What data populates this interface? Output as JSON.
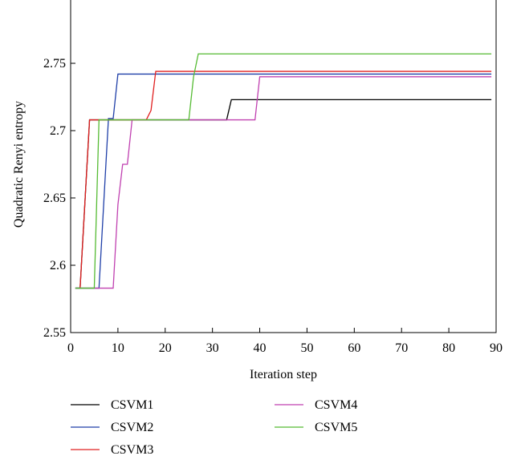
{
  "chart_data": {
    "type": "line",
    "title": "",
    "xlabel": "Iteration step",
    "ylabel": "Quadratic Renyi entropy",
    "xlim": [
      0,
      90
    ],
    "ylim": [
      2.55,
      2.8
    ],
    "xticks": [
      0,
      10,
      20,
      30,
      40,
      50,
      60,
      70,
      80,
      90
    ],
    "xtick_labels": [
      "0",
      "10",
      "20",
      "30",
      "40",
      "50",
      "60",
      "70",
      "80",
      "90"
    ],
    "yticks": [
      2.55,
      2.6,
      2.65,
      2.7,
      2.75
    ],
    "ytick_labels": [
      "2.55",
      "2.6",
      "2.65",
      "2.7",
      "2.75"
    ],
    "grid": false,
    "legend_position": "bottom",
    "series": [
      {
        "name": "CSVM1",
        "color": "#000000",
        "x": [
          1,
          2,
          4,
          33,
          34,
          89
        ],
        "y": [
          2.583,
          2.583,
          2.708,
          2.708,
          2.723,
          2.723
        ]
      },
      {
        "name": "CSVM2",
        "color": "#1f3fa8",
        "x": [
          1,
          6,
          8,
          9,
          10,
          89
        ],
        "y": [
          2.583,
          2.583,
          2.709,
          2.709,
          2.742,
          2.742
        ]
      },
      {
        "name": "CSVM3",
        "color": "#e02020",
        "x": [
          2,
          4,
          16,
          17,
          18,
          89
        ],
        "y": [
          2.583,
          2.708,
          2.708,
          2.715,
          2.744,
          2.744
        ]
      },
      {
        "name": "CSVM4",
        "color": "#c040b0",
        "x": [
          1,
          9,
          10,
          11,
          12,
          13,
          39,
          40,
          89
        ],
        "y": [
          2.583,
          2.583,
          2.645,
          2.675,
          2.675,
          2.708,
          2.708,
          2.74,
          2.74
        ]
      },
      {
        "name": "CSVM5",
        "color": "#55bb33",
        "x": [
          1,
          5,
          6,
          25,
          26,
          27,
          89
        ],
        "y": [
          2.583,
          2.583,
          2.708,
          2.708,
          2.74,
          2.757,
          2.757
        ]
      }
    ]
  }
}
